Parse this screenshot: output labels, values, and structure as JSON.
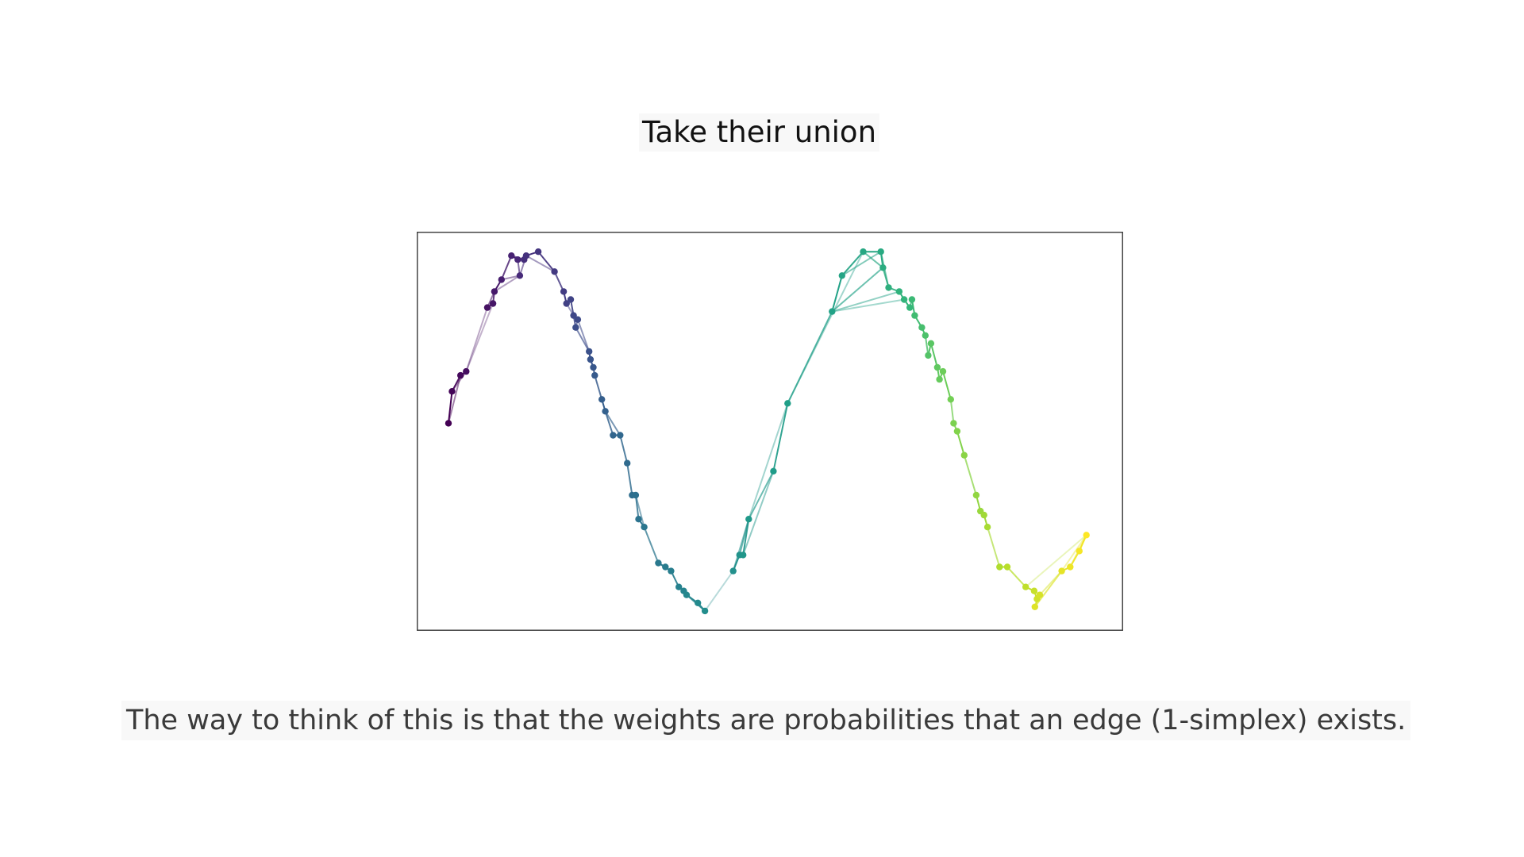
{
  "slide": {
    "title": "Take their union",
    "caption": "The way to think of this is that the weights are probabilities that an edge (1-simplex) exists."
  },
  "chart_data": {
    "type": "scatter",
    "graph": "weighted k-nearest-neighbour graph (union of local fuzzy simplicial sets) over points sampled from a sine curve",
    "axes_visible": false,
    "grid": false,
    "colormap": "viridis",
    "colors": {
      "frame": "#444444",
      "colormap_stops": [
        "#440154",
        "#482878",
        "#3e4989",
        "#31688e",
        "#26828e",
        "#1f9e89",
        "#35b779",
        "#6ece58",
        "#b5de2b",
        "#fde725"
      ]
    },
    "xlim": [
      0,
      1
    ],
    "ylim": [
      0,
      1
    ],
    "points": [
      [
        0.045,
        0.52
      ],
      [
        0.05,
        0.6
      ],
      [
        0.062,
        0.64
      ],
      [
        0.07,
        0.65
      ],
      [
        0.1,
        0.81
      ],
      [
        0.108,
        0.82
      ],
      [
        0.11,
        0.85
      ],
      [
        0.12,
        0.88
      ],
      [
        0.134,
        0.94
      ],
      [
        0.143,
        0.93
      ],
      [
        0.146,
        0.89
      ],
      [
        0.152,
        0.93
      ],
      [
        0.155,
        0.94
      ],
      [
        0.172,
        0.95
      ],
      [
        0.195,
        0.9
      ],
      [
        0.208,
        0.85
      ],
      [
        0.212,
        0.82
      ],
      [
        0.218,
        0.83
      ],
      [
        0.222,
        0.79
      ],
      [
        0.228,
        0.78
      ],
      [
        0.225,
        0.76
      ],
      [
        0.244,
        0.7
      ],
      [
        0.246,
        0.68
      ],
      [
        0.25,
        0.66
      ],
      [
        0.252,
        0.64
      ],
      [
        0.262,
        0.58
      ],
      [
        0.267,
        0.55
      ],
      [
        0.278,
        0.49
      ],
      [
        0.288,
        0.49
      ],
      [
        0.298,
        0.42
      ],
      [
        0.305,
        0.34
      ],
      [
        0.31,
        0.34
      ],
      [
        0.314,
        0.28
      ],
      [
        0.322,
        0.26
      ],
      [
        0.342,
        0.17
      ],
      [
        0.352,
        0.16
      ],
      [
        0.36,
        0.15
      ],
      [
        0.371,
        0.11
      ],
      [
        0.378,
        0.1
      ],
      [
        0.382,
        0.09
      ],
      [
        0.398,
        0.07
      ],
      [
        0.408,
        0.05
      ],
      [
        0.448,
        0.15
      ],
      [
        0.457,
        0.19
      ],
      [
        0.462,
        0.19
      ],
      [
        0.47,
        0.28
      ],
      [
        0.505,
        0.4
      ],
      [
        0.525,
        0.57
      ],
      [
        0.588,
        0.8
      ],
      [
        0.602,
        0.89
      ],
      [
        0.632,
        0.95
      ],
      [
        0.657,
        0.95
      ],
      [
        0.66,
        0.91
      ],
      [
        0.668,
        0.86
      ],
      [
        0.683,
        0.85
      ],
      [
        0.69,
        0.83
      ],
      [
        0.698,
        0.81
      ],
      [
        0.701,
        0.83
      ],
      [
        0.705,
        0.79
      ],
      [
        0.715,
        0.76
      ],
      [
        0.72,
        0.74
      ],
      [
        0.724,
        0.69
      ],
      [
        0.728,
        0.72
      ],
      [
        0.737,
        0.66
      ],
      [
        0.74,
        0.63
      ],
      [
        0.745,
        0.65
      ],
      [
        0.756,
        0.58
      ],
      [
        0.76,
        0.52
      ],
      [
        0.765,
        0.5
      ],
      [
        0.775,
        0.44
      ],
      [
        0.792,
        0.34
      ],
      [
        0.798,
        0.3
      ],
      [
        0.803,
        0.29
      ],
      [
        0.808,
        0.26
      ],
      [
        0.825,
        0.16
      ],
      [
        0.836,
        0.16
      ],
      [
        0.862,
        0.11
      ],
      [
        0.874,
        0.1
      ],
      [
        0.878,
        0.08
      ],
      [
        0.882,
        0.09
      ],
      [
        0.875,
        0.06
      ],
      [
        0.913,
        0.15
      ],
      [
        0.925,
        0.16
      ],
      [
        0.938,
        0.2
      ],
      [
        0.948,
        0.24
      ]
    ],
    "edges": [
      [
        0,
        1,
        1.0
      ],
      [
        1,
        2,
        0.9
      ],
      [
        2,
        3,
        1.0
      ],
      [
        0,
        2,
        0.4
      ],
      [
        1,
        3,
        0.3
      ],
      [
        3,
        4,
        0.25
      ],
      [
        3,
        5,
        0.2
      ],
      [
        4,
        5,
        1.0
      ],
      [
        5,
        6,
        0.8
      ],
      [
        6,
        7,
        1.0
      ],
      [
        4,
        6,
        0.5
      ],
      [
        7,
        8,
        0.8
      ],
      [
        8,
        9,
        1.0
      ],
      [
        9,
        10,
        0.6
      ],
      [
        8,
        11,
        0.7
      ],
      [
        11,
        12,
        1.0
      ],
      [
        12,
        13,
        1.0
      ],
      [
        9,
        11,
        0.6
      ],
      [
        10,
        12,
        0.5
      ],
      [
        7,
        10,
        0.4
      ],
      [
        6,
        10,
        0.3
      ],
      [
        13,
        14,
        0.9
      ],
      [
        12,
        14,
        0.4
      ],
      [
        14,
        15,
        0.8
      ],
      [
        15,
        16,
        1.0
      ],
      [
        16,
        17,
        0.9
      ],
      [
        17,
        18,
        0.9
      ],
      [
        18,
        19,
        1.0
      ],
      [
        18,
        20,
        0.8
      ],
      [
        19,
        20,
        0.6
      ],
      [
        16,
        18,
        0.4
      ],
      [
        20,
        21,
        0.6
      ],
      [
        19,
        21,
        0.5
      ],
      [
        21,
        22,
        1.0
      ],
      [
        22,
        23,
        1.0
      ],
      [
        23,
        24,
        0.9
      ],
      [
        24,
        25,
        0.8
      ],
      [
        25,
        26,
        1.0
      ],
      [
        26,
        27,
        0.8
      ],
      [
        27,
        28,
        1.0
      ],
      [
        26,
        28,
        0.6
      ],
      [
        28,
        29,
        0.8
      ],
      [
        29,
        30,
        0.8
      ],
      [
        30,
        31,
        1.0
      ],
      [
        31,
        32,
        0.8
      ],
      [
        32,
        33,
        1.0
      ],
      [
        31,
        33,
        0.5
      ],
      [
        33,
        34,
        0.7
      ],
      [
        34,
        35,
        1.0
      ],
      [
        35,
        36,
        1.0
      ],
      [
        34,
        36,
        0.5
      ],
      [
        36,
        37,
        0.9
      ],
      [
        37,
        38,
        1.0
      ],
      [
        38,
        39,
        0.8
      ],
      [
        39,
        40,
        0.9
      ],
      [
        40,
        41,
        0.9
      ],
      [
        37,
        41,
        0.5
      ],
      [
        39,
        41,
        0.6
      ],
      [
        41,
        42,
        0.2
      ],
      [
        42,
        43,
        1.0
      ],
      [
        43,
        44,
        1.0
      ],
      [
        44,
        45,
        0.9
      ],
      [
        42,
        45,
        0.5
      ],
      [
        43,
        45,
        0.6
      ],
      [
        45,
        46,
        0.6
      ],
      [
        44,
        46,
        0.4
      ],
      [
        46,
        47,
        0.9
      ],
      [
        45,
        47,
        0.3
      ],
      [
        47,
        48,
        0.7
      ],
      [
        47,
        50,
        0.3
      ],
      [
        48,
        49,
        1.0
      ],
      [
        49,
        50,
        0.9
      ],
      [
        50,
        51,
        1.0
      ],
      [
        49,
        51,
        0.5
      ],
      [
        51,
        52,
        1.0
      ],
      [
        48,
        52,
        0.6
      ],
      [
        50,
        52,
        0.6
      ],
      [
        51,
        53,
        0.6
      ],
      [
        52,
        53,
        0.8
      ],
      [
        48,
        54,
        0.4
      ],
      [
        48,
        55,
        0.3
      ],
      [
        53,
        54,
        0.9
      ],
      [
        54,
        55,
        1.0
      ],
      [
        55,
        56,
        1.0
      ],
      [
        56,
        57,
        0.8
      ],
      [
        57,
        58,
        1.0
      ],
      [
        58,
        59,
        1.0
      ],
      [
        59,
        60,
        1.0
      ],
      [
        60,
        61,
        0.8
      ],
      [
        61,
        62,
        1.0
      ],
      [
        62,
        63,
        1.0
      ],
      [
        63,
        64,
        1.0
      ],
      [
        64,
        65,
        1.0
      ],
      [
        65,
        66,
        1.0
      ],
      [
        63,
        65,
        0.5
      ],
      [
        66,
        67,
        0.7
      ],
      [
        67,
        68,
        0.9
      ],
      [
        68,
        69,
        1.0
      ],
      [
        69,
        70,
        0.7
      ],
      [
        70,
        71,
        1.0
      ],
      [
        71,
        72,
        1.0
      ],
      [
        72,
        73,
        1.0
      ],
      [
        73,
        74,
        0.6
      ],
      [
        74,
        75,
        1.0
      ],
      [
        75,
        76,
        0.7
      ],
      [
        76,
        77,
        1.0
      ],
      [
        77,
        78,
        1.0
      ],
      [
        78,
        79,
        1.0
      ],
      [
        77,
        79,
        0.6
      ],
      [
        79,
        80,
        0.8
      ],
      [
        78,
        80,
        0.5
      ],
      [
        80,
        81,
        0.6
      ],
      [
        79,
        81,
        0.4
      ],
      [
        81,
        82,
        1.0
      ],
      [
        82,
        83,
        0.9
      ],
      [
        83,
        84,
        1.0
      ],
      [
        81,
        84,
        0.3
      ],
      [
        82,
        84,
        0.4
      ],
      [
        76,
        84,
        0.2
      ]
    ]
  }
}
